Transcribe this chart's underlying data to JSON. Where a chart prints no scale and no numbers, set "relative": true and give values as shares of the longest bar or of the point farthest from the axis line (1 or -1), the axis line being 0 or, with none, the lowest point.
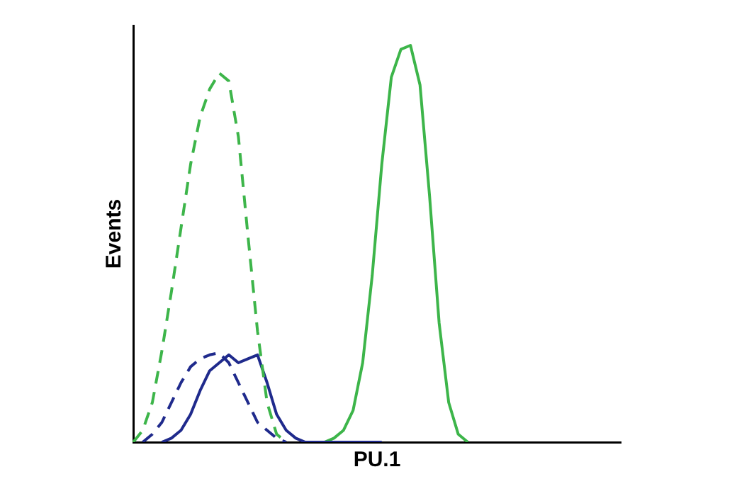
{
  "chart_data": {
    "type": "line",
    "xlabel": "PU.1",
    "ylabel": "Events",
    "relative": true,
    "grid": false,
    "legend": false,
    "marker": "none",
    "categories": [
      null,
      null,
      null,
      null,
      null,
      null,
      null,
      null,
      null,
      null,
      null,
      null,
      null,
      null,
      null,
      null,
      null,
      null,
      null,
      null,
      null,
      null,
      null,
      null,
      null,
      null,
      null,
      null,
      null,
      null,
      null,
      null,
      null,
      null,
      null,
      null,
      null,
      null,
      null,
      null,
      null,
      null,
      null,
      null,
      null,
      null,
      null,
      null,
      null,
      null,
      null,
      null
    ],
    "series": [
      {
        "color": "#3db54a",
        "line_style": "dashed",
        "values": [
          0,
          0.03,
          0.1,
          0.23,
          0.38,
          0.54,
          0.7,
          0.82,
          0.89,
          0.93,
          0.91,
          0.77,
          0.52,
          0.28,
          0.1,
          0.02,
          0,
          null,
          null,
          null,
          null,
          null,
          null,
          null,
          null,
          null,
          null,
          null,
          null,
          null,
          null,
          null,
          null,
          null,
          null,
          null,
          null,
          null,
          null,
          null,
          null,
          null,
          null,
          null,
          null,
          null,
          null,
          null,
          null,
          null,
          null,
          null
        ]
      },
      {
        "color": "#1f2a8c",
        "line_style": "dashed",
        "values": [
          null,
          0,
          0.02,
          0.05,
          0.1,
          0.15,
          0.19,
          0.21,
          0.22,
          0.225,
          0.2,
          0.15,
          0.1,
          0.05,
          0.03,
          0.01,
          0,
          null,
          null,
          null,
          null,
          null,
          null,
          null,
          null,
          null,
          null,
          null,
          null,
          null,
          null,
          null,
          null,
          null,
          null,
          null,
          null,
          null,
          null,
          null,
          null,
          null,
          null,
          null,
          null,
          null,
          null,
          null,
          null,
          null,
          null,
          null
        ]
      },
      {
        "color": "#1f2a8c",
        "line_style": "solid",
        "values": [
          null,
          null,
          null,
          0,
          0.01,
          0.03,
          0.07,
          0.13,
          0.18,
          0.2,
          0.22,
          0.2,
          0.21,
          0.22,
          0.15,
          0.07,
          0.03,
          0.01,
          0,
          0,
          0,
          0,
          0,
          0,
          0,
          0,
          0,
          null,
          null,
          null,
          null,
          null,
          null,
          null,
          null,
          null,
          null,
          null,
          null,
          null,
          null,
          null,
          null,
          null,
          null,
          null,
          null,
          null,
          null,
          null,
          null,
          null
        ]
      },
      {
        "color": "#3db54a",
        "line_style": "solid",
        "values": [
          null,
          null,
          null,
          null,
          null,
          null,
          null,
          null,
          null,
          null,
          null,
          null,
          null,
          null,
          null,
          null,
          null,
          null,
          null,
          null,
          0,
          0.01,
          0.03,
          0.08,
          0.2,
          0.42,
          0.7,
          0.92,
          0.99,
          1,
          0.9,
          0.62,
          0.3,
          0.1,
          0.02,
          0,
          null,
          null,
          null,
          null,
          null,
          null,
          null,
          null,
          null,
          null,
          null,
          null,
          null,
          null,
          null,
          null
        ]
      }
    ]
  }
}
